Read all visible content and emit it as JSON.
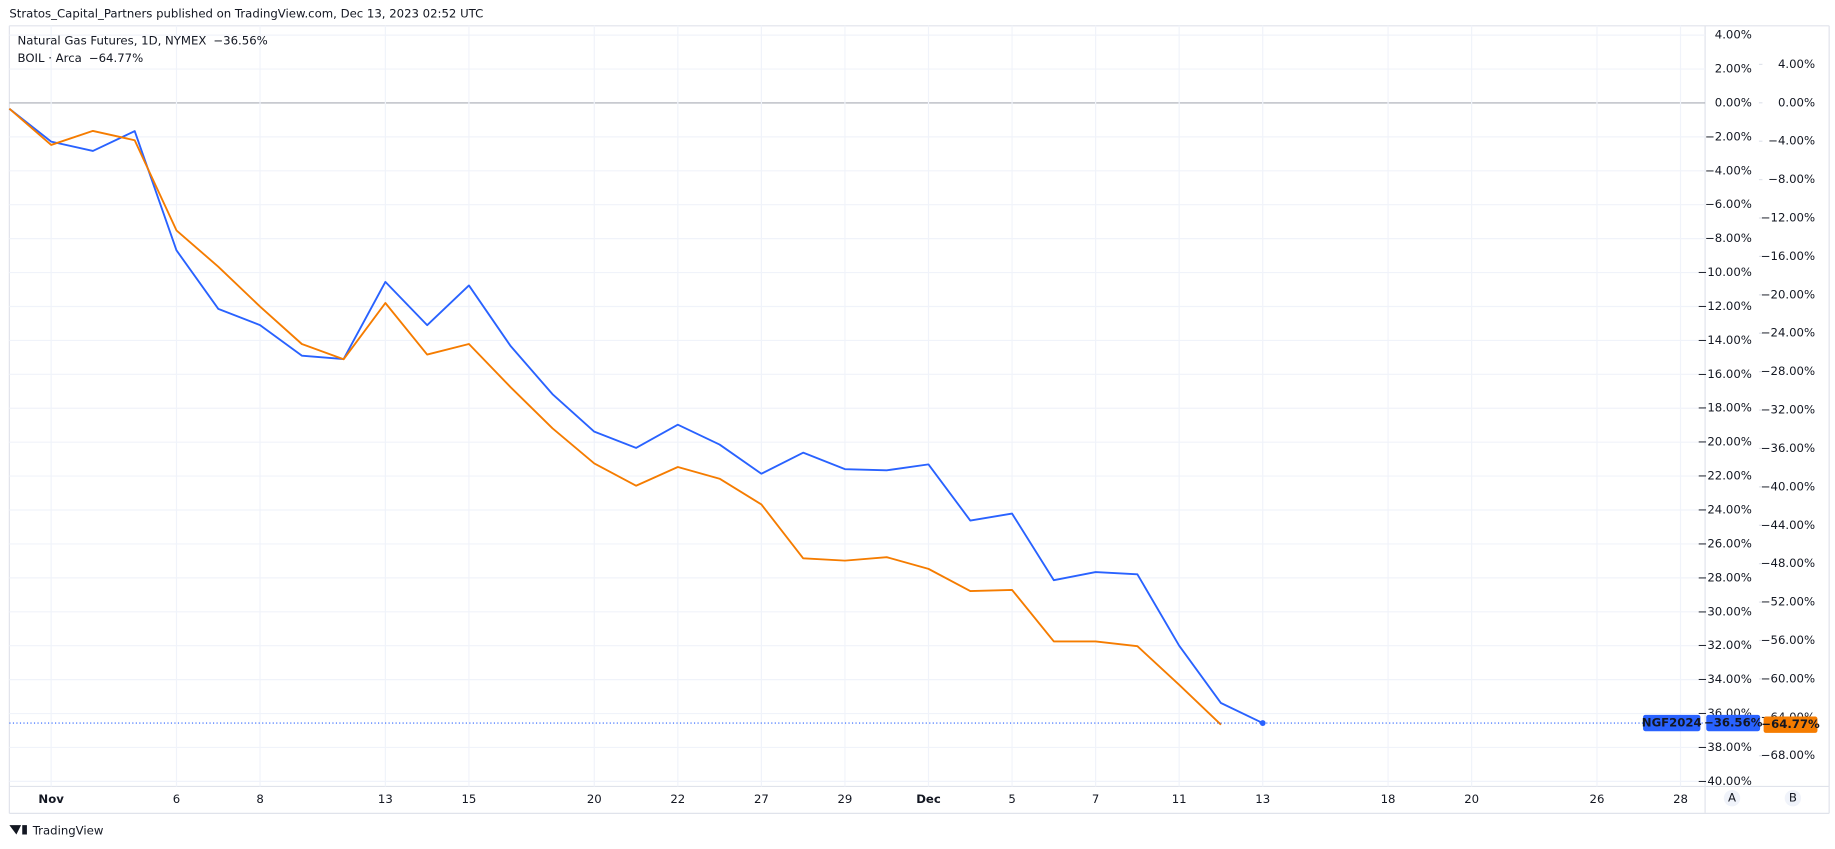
{
  "header": "Stratos_Capital_Partners published on TradingView.com, Dec 13, 2023 02:52 UTC",
  "footer": "TradingView",
  "chart_data": {
    "type": "line",
    "categories": [
      null,
      "Nov",
      null,
      null,
      "6",
      null,
      "8",
      null,
      null,
      "13",
      null,
      "15",
      null,
      null,
      "20",
      null,
      "22",
      null,
      "27",
      null,
      "29",
      null,
      "Dec",
      null,
      "5",
      null,
      "7",
      null,
      "11",
      null,
      "13",
      null,
      null,
      "18",
      null,
      "20",
      null,
      null,
      "26",
      null,
      "28"
    ],
    "series": [
      {
        "name": "Natural Gas Futures, 1D, NYMEX",
        "legend_value": "−36.56%",
        "tag": "NGF2024",
        "last_label": "−36.56%",
        "color": "#2962ff",
        "axis": "y",
        "values": [
          -0.34,
          -2.28,
          -2.83,
          -1.66,
          -8.69,
          -12.14,
          -13.1,
          -14.9,
          -15.1,
          -10.55,
          -13.1,
          -10.76,
          -14.34,
          -17.17,
          -19.38,
          -20.34,
          -18.97,
          -20.14,
          -21.86,
          -20.62,
          -21.59,
          -21.66,
          -21.31,
          -24.62,
          -24.21,
          -28.14,
          -27.66,
          -27.79,
          -32.0,
          -35.38,
          -36.56,
          null,
          null,
          null,
          null,
          null,
          null,
          null,
          null,
          null,
          null
        ]
      },
      {
        "name": "BOIL · Arca",
        "legend_value": "−64.77%",
        "last_label": "−64.77%",
        "color": "#f57c00",
        "axis": "y2",
        "values": [
          -0.61,
          -4.39,
          -2.93,
          -3.9,
          -13.29,
          -17.07,
          -21.22,
          -25.12,
          -26.71,
          -20.85,
          -26.22,
          -25.12,
          -29.63,
          -33.9,
          -37.56,
          -39.88,
          -37.93,
          -39.15,
          -41.83,
          -47.44,
          -47.68,
          -47.32,
          -48.54,
          -50.85,
          -50.73,
          -56.1,
          -56.1,
          -56.59,
          -60.61,
          -64.77,
          null,
          null,
          null,
          null,
          null,
          null,
          null,
          null,
          null,
          null,
          null
        ]
      }
    ],
    "ylim": [
      -40.3,
      4.55
    ],
    "yticks": [
      {
        "value": 4,
        "label": "4.00%"
      },
      {
        "value": 2,
        "label": "2.00%"
      },
      {
        "value": 0,
        "label": "0.00%"
      },
      {
        "value": -2,
        "label": "−2.00%"
      },
      {
        "value": -4,
        "label": "−4.00%"
      },
      {
        "value": -6,
        "label": "−6.00%"
      },
      {
        "value": -8,
        "label": "−8.00%"
      },
      {
        "value": -10,
        "label": "−10.00%"
      },
      {
        "value": -12,
        "label": "−12.00%"
      },
      {
        "value": -14,
        "label": "−14.00%"
      },
      {
        "value": -16,
        "label": "−16.00%"
      },
      {
        "value": -18,
        "label": "−18.00%"
      },
      {
        "value": -20,
        "label": "−20.00%"
      },
      {
        "value": -22,
        "label": "−22.00%"
      },
      {
        "value": -24,
        "label": "−24.00%"
      },
      {
        "value": -26,
        "label": "−26.00%"
      },
      {
        "value": -28,
        "label": "−28.00%"
      },
      {
        "value": -30,
        "label": "−30.00%"
      },
      {
        "value": -32,
        "label": "−32.00%"
      },
      {
        "value": -34,
        "label": "−34.00%"
      },
      {
        "value": -36,
        "label": "−36.00%"
      },
      {
        "value": -38,
        "label": "−38.00%"
      },
      {
        "value": -40,
        "label": "−40.00%"
      }
    ],
    "y2lim": [
      -71.2,
      8.02
    ],
    "y2ticks": [
      {
        "value": 4,
        "label": "4.00%"
      },
      {
        "value": 0,
        "label": "0.00%"
      },
      {
        "value": -4,
        "label": "−4.00%"
      },
      {
        "value": -8,
        "label": "−8.00%"
      },
      {
        "value": -12,
        "label": "−12.00%"
      },
      {
        "value": -16,
        "label": "−16.00%"
      },
      {
        "value": -20,
        "label": "−20.00%"
      },
      {
        "value": -24,
        "label": "−24.00%"
      },
      {
        "value": -28,
        "label": "−28.00%"
      },
      {
        "value": -32,
        "label": "−32.00%"
      },
      {
        "value": -36,
        "label": "−36.00%"
      },
      {
        "value": -40,
        "label": "−40.00%"
      },
      {
        "value": -44,
        "label": "−44.00%"
      },
      {
        "value": -48,
        "label": "−48.00%"
      },
      {
        "value": -52,
        "label": "−52.00%"
      },
      {
        "value": -56,
        "label": "−56.00%"
      },
      {
        "value": -60,
        "label": "−60.00%"
      },
      {
        "value": -64,
        "label": "−64.00%"
      },
      {
        "value": -68,
        "label": "−68.00%"
      }
    ],
    "bold_categories": [
      "Nov",
      "Dec"
    ],
    "axis_buttons": [
      "A",
      "B"
    ],
    "grid": true
  }
}
